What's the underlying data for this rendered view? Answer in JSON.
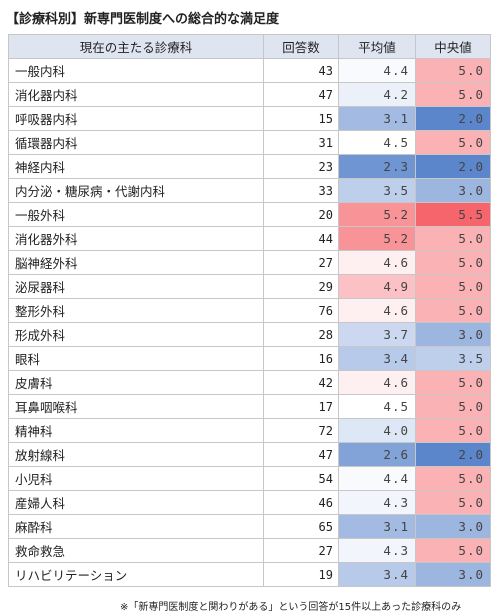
{
  "title": "【診療科別】新専門医制度への総合的な満足度",
  "footnote": "※「新専門医制度と関わりがある」という回答が15件以上あった診療科のみ",
  "chart_data": {
    "type": "table",
    "columns": [
      "現在の主たる診療科",
      "回答数",
      "平均値",
      "中央値"
    ],
    "rows": [
      {
        "name": "一般内科",
        "n": 43,
        "mean": "4.4",
        "median": "5.0"
      },
      {
        "name": "消化器内科",
        "n": 47,
        "mean": "4.2",
        "median": "5.0"
      },
      {
        "name": "呼吸器内科",
        "n": 15,
        "mean": "3.1",
        "median": "2.0"
      },
      {
        "name": "循環器内科",
        "n": 31,
        "mean": "4.5",
        "median": "5.0"
      },
      {
        "name": "神経内科",
        "n": 23,
        "mean": "2.3",
        "median": "2.0"
      },
      {
        "name": "内分泌・糖尿病・代謝内科",
        "n": 33,
        "mean": "3.5",
        "median": "3.0"
      },
      {
        "name": "一般外科",
        "n": 20,
        "mean": "5.2",
        "median": "5.5"
      },
      {
        "name": "消化器外科",
        "n": 44,
        "mean": "5.2",
        "median": "5.0"
      },
      {
        "name": "脳神経外科",
        "n": 27,
        "mean": "4.6",
        "median": "5.0"
      },
      {
        "name": "泌尿器科",
        "n": 29,
        "mean": "4.9",
        "median": "5.0"
      },
      {
        "name": "整形外科",
        "n": 76,
        "mean": "4.6",
        "median": "5.0"
      },
      {
        "name": "形成外科",
        "n": 28,
        "mean": "3.7",
        "median": "3.0"
      },
      {
        "name": "眼科",
        "n": 16,
        "mean": "3.4",
        "median": "3.5"
      },
      {
        "name": "皮膚科",
        "n": 42,
        "mean": "4.6",
        "median": "5.0"
      },
      {
        "name": "耳鼻咽喉科",
        "n": 17,
        "mean": "4.5",
        "median": "5.0"
      },
      {
        "name": "精神科",
        "n": 72,
        "mean": "4.0",
        "median": "5.0"
      },
      {
        "name": "放射線科",
        "n": 47,
        "mean": "2.6",
        "median": "2.0"
      },
      {
        "name": "小児科",
        "n": 54,
        "mean": "4.4",
        "median": "5.0"
      },
      {
        "name": "産婦人科",
        "n": 46,
        "mean": "4.3",
        "median": "5.0"
      },
      {
        "name": "麻酔科",
        "n": 65,
        "mean": "3.1",
        "median": "3.0"
      },
      {
        "name": "救命救急",
        "n": 27,
        "mean": "4.3",
        "median": "5.0"
      },
      {
        "name": "リハビリテーション",
        "n": 19,
        "mean": "3.4",
        "median": "3.0"
      }
    ],
    "color_scale": {
      "low": "#5b86cc",
      "mid": "#ffffff",
      "high": "#f5656b"
    }
  }
}
